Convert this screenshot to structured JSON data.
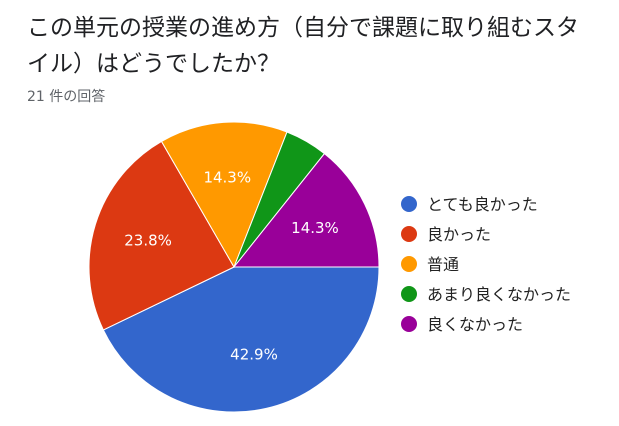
{
  "header": {
    "title": "この単元の授業の進め方（自分で課題に取り組むスタイル）はどうでしたか？",
    "response_count": "21 件の回答"
  },
  "chart_data": {
    "type": "pie",
    "title": "この単元の授業の進め方（自分で課題に取り組むスタイル）はどうでしたか？",
    "legend_position": "right",
    "slices": [
      {
        "label": "とても良かった",
        "value": 9,
        "percent_label": "42.9%",
        "color": "#3366cc"
      },
      {
        "label": "良かった",
        "value": 5,
        "percent_label": "23.8%",
        "color": "#dc3912"
      },
      {
        "label": "普通",
        "value": 3,
        "percent_label": "14.3%",
        "color": "#ff9900"
      },
      {
        "label": "あまり良くなかった",
        "value": 1,
        "percent_label": "",
        "color": "#109618"
      },
      {
        "label": "良くなかった",
        "value": 3,
        "percent_label": "14.3%",
        "color": "#990099"
      }
    ]
  }
}
